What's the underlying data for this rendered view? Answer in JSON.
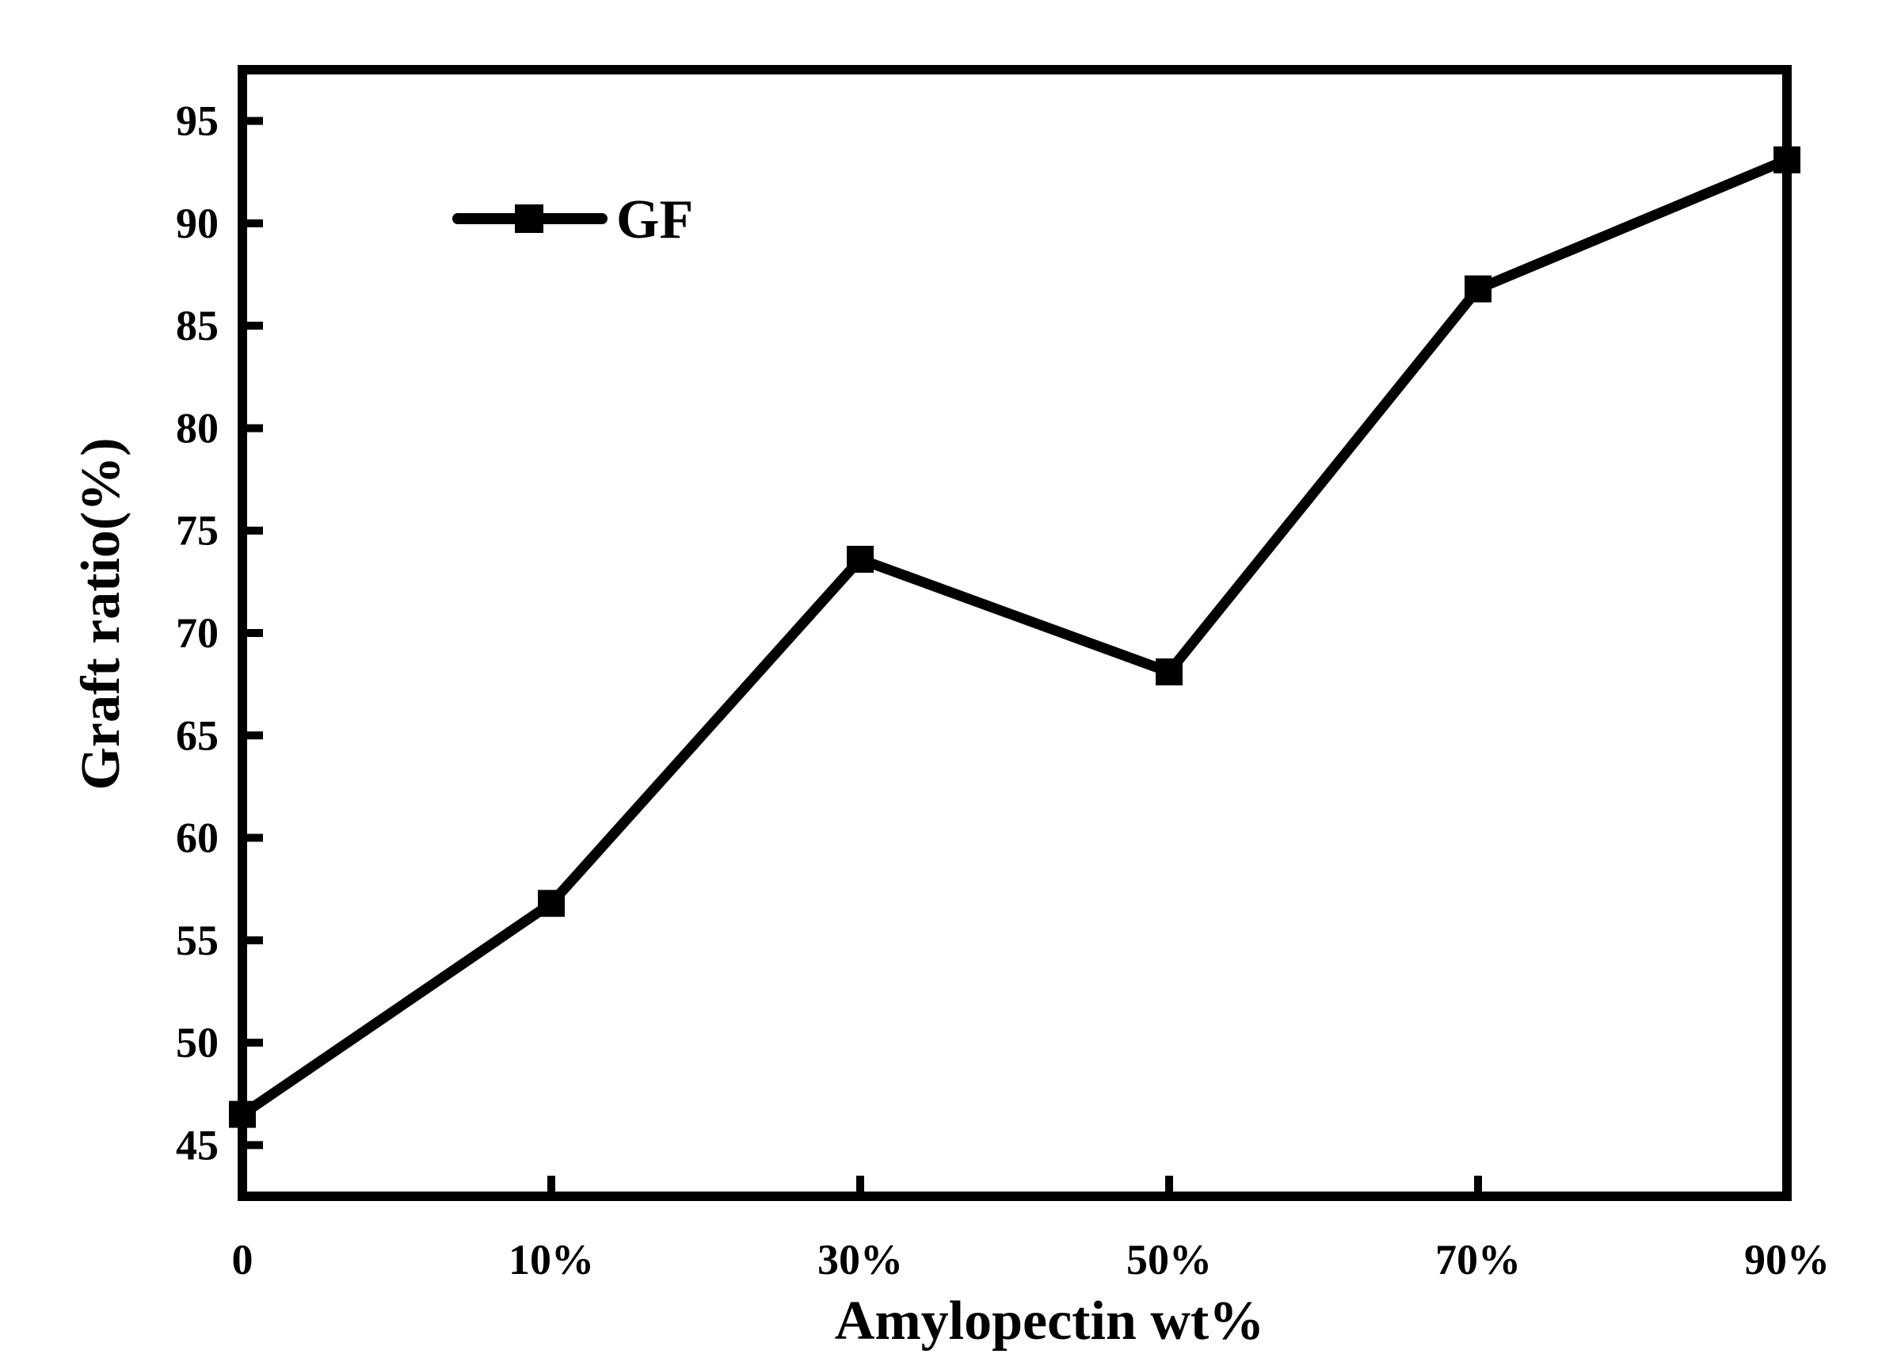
{
  "chart_data": {
    "type": "line",
    "title": "",
    "xlabel": "Amylopectin wt%",
    "ylabel": "Graft ratio(%)",
    "categories": [
      "0",
      "10%",
      "30%",
      "50%",
      "70%",
      "90%"
    ],
    "series": [
      {
        "name": "GF",
        "values": [
          46.5,
          56.8,
          73.6,
          68.1,
          86.8,
          93.1
        ],
        "color": "#000000",
        "marker": "square"
      }
    ],
    "ylim": [
      42.5,
      97.5
    ],
    "yticks": [
      45,
      50,
      55,
      60,
      65,
      70,
      75,
      80,
      85,
      90,
      95
    ],
    "grid": false,
    "legend_position": "top-left"
  }
}
